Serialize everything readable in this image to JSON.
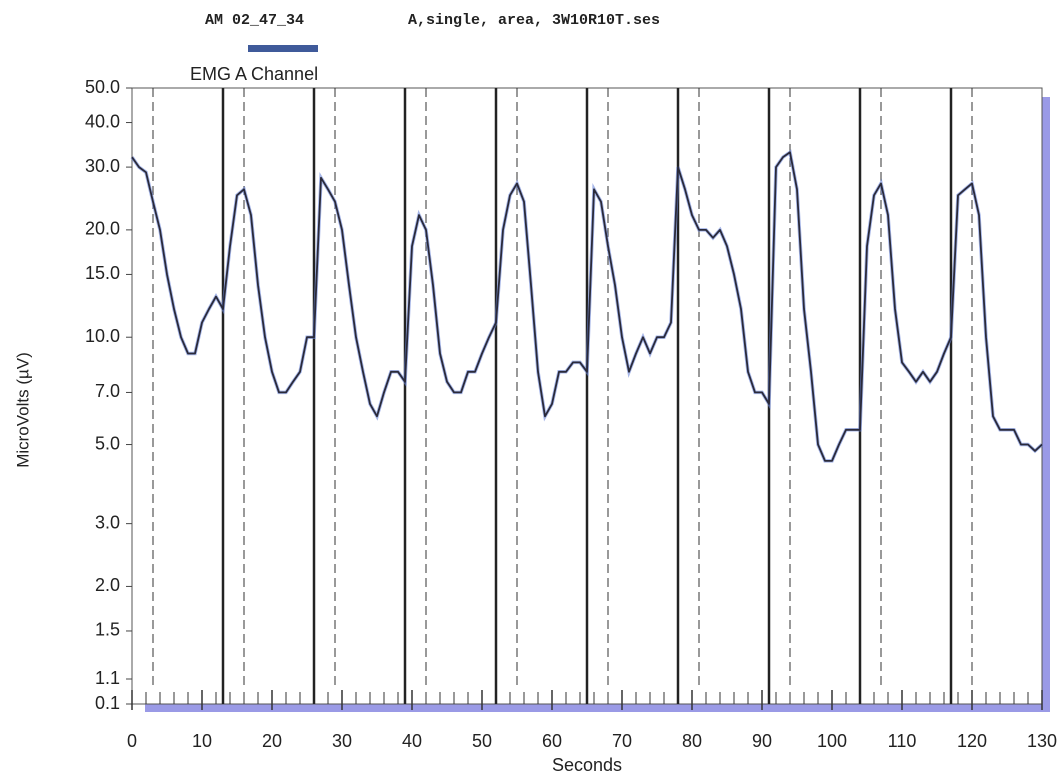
{
  "chart_data": {
    "type": "line",
    "session_time": "AM 02_47_34",
    "session_info": "A,single, area, 3W10R10T.ses",
    "title": "EMG A Channel",
    "y_label": "MicroVolts (µV)",
    "x_label": "Seconds",
    "y_scale": "log",
    "xlim": [
      0,
      130
    ],
    "xticks": [
      0,
      10,
      20,
      30,
      40,
      50,
      60,
      70,
      80,
      90,
      100,
      110,
      120,
      130
    ],
    "xminorticks": [
      2,
      4,
      6,
      8,
      12,
      14,
      16,
      18,
      22,
      24,
      26,
      28,
      32,
      34,
      36,
      38,
      42,
      44,
      46,
      48,
      52,
      54,
      56,
      58,
      62,
      64,
      66,
      68,
      72,
      74,
      76,
      78,
      82,
      84,
      86,
      88,
      92,
      94,
      96,
      98,
      102,
      104,
      106,
      108,
      112,
      114,
      116,
      118,
      122,
      124,
      126,
      128
    ],
    "ylim": [
      0.1,
      50
    ],
    "yticks": [
      {
        "value": 50,
        "label": "50.0"
      },
      {
        "value": 40,
        "label": "40.0"
      },
      {
        "value": 30,
        "label": "30.0"
      },
      {
        "value": 20,
        "label": "20.0"
      },
      {
        "value": 15,
        "label": "15.0"
      },
      {
        "value": 10,
        "label": "10.0"
      },
      {
        "value": 7,
        "label": "7.0"
      },
      {
        "value": 5,
        "label": "5.0"
      },
      {
        "value": 3,
        "label": "3.0"
      },
      {
        "value": 2,
        "label": "2.0"
      },
      1.5,
      1.1,
      0.1
    ],
    "work_markers": [
      13,
      26,
      39,
      52,
      65,
      78,
      91,
      104,
      117
    ],
    "rest_markers": [
      3,
      16,
      29,
      42,
      55,
      68,
      81,
      94,
      107,
      120
    ],
    "color": "#2a2a3a",
    "x": [
      0,
      1,
      2,
      3,
      4,
      5,
      6,
      7,
      8,
      9,
      10,
      11,
      12,
      13,
      14,
      15,
      16,
      17,
      18,
      19,
      20,
      21,
      22,
      23,
      24,
      25,
      26,
      27,
      28,
      29,
      30,
      31,
      32,
      33,
      34,
      35,
      36,
      37,
      38,
      39,
      40,
      41,
      42,
      43,
      44,
      45,
      46,
      47,
      48,
      49,
      50,
      51,
      52,
      53,
      54,
      55,
      56,
      57,
      58,
      59,
      60,
      61,
      62,
      63,
      64,
      65,
      66,
      67,
      68,
      69,
      70,
      71,
      72,
      73,
      74,
      75,
      76,
      77,
      78,
      79,
      80,
      81,
      82,
      83,
      84,
      85,
      86,
      87,
      88,
      89,
      90,
      91,
      92,
      93,
      94,
      95,
      96,
      97,
      98,
      99,
      100,
      101,
      102,
      103,
      104,
      105,
      106,
      107,
      108,
      109,
      110,
      111,
      112,
      113,
      114,
      115,
      116,
      117,
      118,
      119,
      120,
      121,
      122,
      123,
      124,
      125,
      126,
      127,
      128,
      129,
      130
    ],
    "values": [
      32,
      30,
      29,
      24,
      20,
      15,
      12,
      10,
      9,
      9,
      11,
      12,
      13,
      12,
      18,
      25,
      26,
      22,
      14,
      10,
      8,
      7,
      7,
      7.5,
      8,
      10,
      10,
      28,
      26,
      24,
      20,
      14,
      10,
      8,
      6.5,
      6,
      7,
      8,
      8,
      7.5,
      18,
      22,
      20,
      14,
      9,
      7.5,
      7,
      7,
      8,
      8,
      9,
      10,
      11,
      20,
      25,
      27,
      24,
      14,
      8,
      6,
      6.5,
      8,
      8,
      8.5,
      8.5,
      8,
      26,
      24,
      18,
      14,
      10,
      8,
      9,
      10,
      9,
      10,
      10,
      11,
      30,
      26,
      22,
      20,
      20,
      19,
      20,
      18,
      15,
      12,
      8,
      7,
      7,
      6.5,
      30,
      32,
      33,
      26,
      12,
      8,
      5,
      4.5,
      4.5,
      5,
      5.5,
      5.5,
      5.5,
      18,
      25,
      27,
      22,
      12,
      8.5,
      8,
      7.5,
      8,
      7.5,
      8,
      9,
      10,
      25,
      26,
      27,
      22,
      10,
      6,
      5.5,
      5.5,
      5.5,
      5,
      5,
      4.8,
      5
    ]
  }
}
